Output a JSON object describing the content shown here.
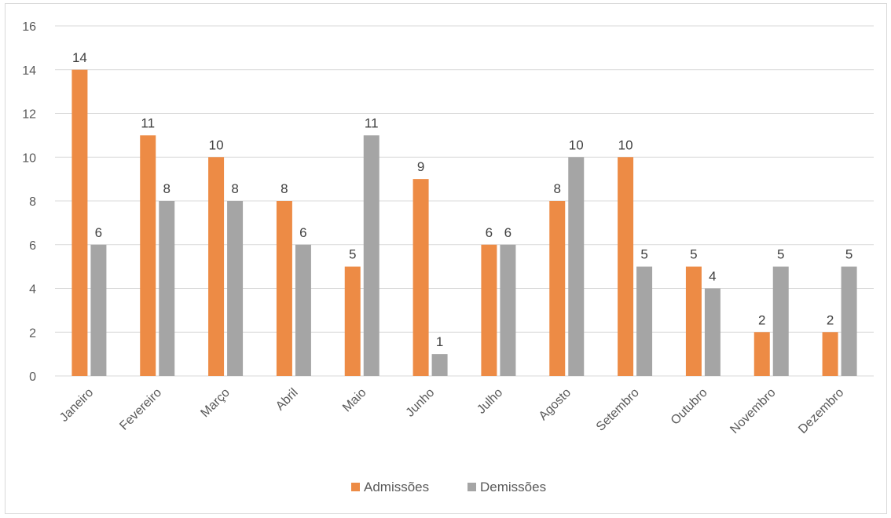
{
  "chart_data": {
    "type": "bar",
    "title": "",
    "xlabel": "",
    "ylabel": "",
    "ylim": [
      0,
      16
    ],
    "yticks": [
      0,
      2,
      4,
      6,
      8,
      10,
      12,
      14,
      16
    ],
    "grid": true,
    "legend_position": "bottom",
    "categories": [
      "Janeiro",
      "Fevereiro",
      "Março",
      "Abril",
      "Maio",
      "Junho",
      "Julho",
      "Agosto",
      "Setembro",
      "Outubro",
      "Novembro",
      "Dezembro"
    ],
    "series": [
      {
        "name": "Admissões",
        "color": "#ed8b45",
        "values": [
          14,
          11,
          10,
          8,
          5,
          9,
          6,
          8,
          10,
          5,
          2,
          2
        ]
      },
      {
        "name": "Demissões",
        "color": "#a5a5a5",
        "values": [
          6,
          8,
          8,
          6,
          11,
          1,
          6,
          10,
          5,
          4,
          5,
          5
        ]
      }
    ]
  }
}
